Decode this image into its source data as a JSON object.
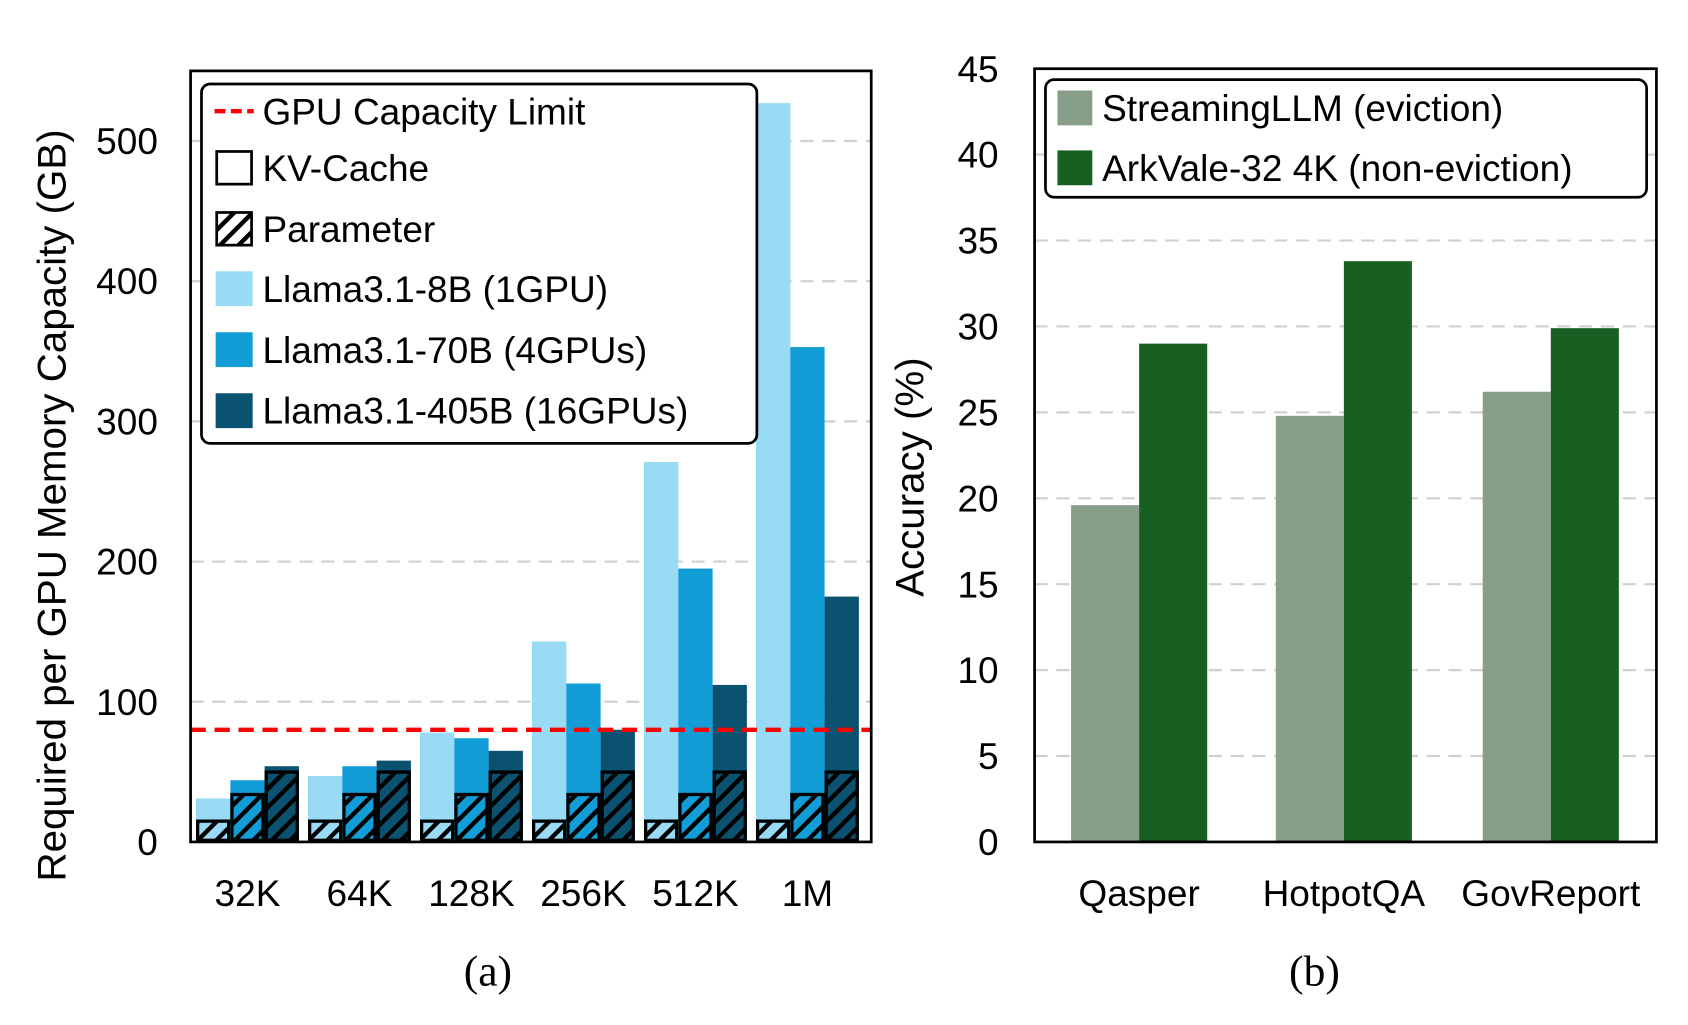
{
  "chart_data": [
    {
      "type": "bar",
      "caption": "(a)",
      "ylabel": "Required per GPU Memory Capacity (GB)",
      "xlabel": "",
      "categories": [
        "32K",
        "64K",
        "128K",
        "256K",
        "512K",
        "1M"
      ],
      "ylim": [
        0,
        550
      ],
      "yticks": [
        "0",
        "100",
        "200",
        "300",
        "400",
        "500"
      ],
      "grid": true,
      "legend_placement": "top-left",
      "series": [
        {
          "name": "Llama3.1-8B (1GPU)",
          "color": "#99dbf5",
          "values": [
            31,
            47,
            78,
            143,
            271,
            527
          ],
          "parameter": [
            16,
            16,
            16,
            16,
            16,
            16
          ]
        },
        {
          "name": "Llama3.1-70B (4GPUs)",
          "color": "#129dd6",
          "values": [
            44,
            54,
            74,
            113,
            195,
            353
          ],
          "parameter": [
            35,
            35,
            35,
            35,
            35,
            35
          ]
        },
        {
          "name": "Llama3.1-405B (16GPUs)",
          "color": "#0a526f",
          "values": [
            54,
            58,
            65,
            80,
            112,
            175
          ],
          "parameter": [
            51,
            51,
            51,
            51,
            51,
            51
          ]
        }
      ],
      "reference_line": {
        "name": "GPU Capacity Limit",
        "value": 80,
        "color": "#ff0000",
        "style": "dashed"
      },
      "pattern_legend": [
        {
          "name": "KV-Cache",
          "pattern": "plain"
        },
        {
          "name": "Parameter",
          "pattern": "hatched"
        }
      ]
    },
    {
      "type": "bar",
      "caption": "(b)",
      "ylabel": "Accuracy (%)",
      "xlabel": "",
      "categories": [
        "Qasper",
        "HotpotQA",
        "GovReport"
      ],
      "ylim": [
        0,
        45
      ],
      "yticks": [
        "0",
        "5",
        "10",
        "15",
        "20",
        "25",
        "30",
        "35",
        "40",
        "45"
      ],
      "grid": true,
      "legend_placement": "top",
      "series": [
        {
          "name": "StreamingLLM (eviction)",
          "color": "#879f89",
          "values": [
            19.6,
            24.8,
            26.2
          ]
        },
        {
          "name": "ArkVale-32 4K (non-eviction)",
          "color": "#185f22",
          "values": [
            29.0,
            33.8,
            29.9
          ]
        }
      ]
    }
  ]
}
